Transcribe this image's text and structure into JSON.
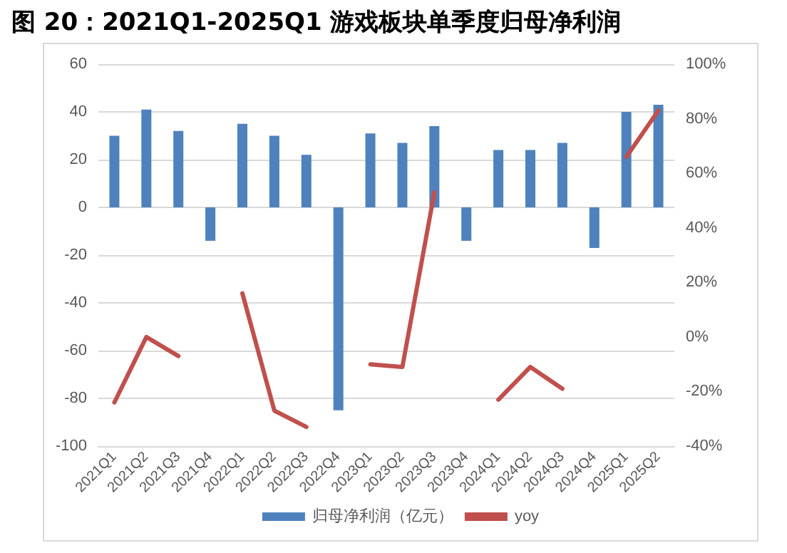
{
  "chart_data": {
    "type": "bar",
    "title": "图 20：2021Q1-2025Q1 游戏板块单季度归母净利润",
    "categories": [
      "2021Q1",
      "2021Q2",
      "2021Q3",
      "2021Q4",
      "2022Q1",
      "2022Q2",
      "2022Q3",
      "2022Q4",
      "2023Q1",
      "2023Q2",
      "2023Q3",
      "2023Q4",
      "2024Q1",
      "2024Q2",
      "2024Q3",
      "2024Q4",
      "2025Q1",
      "2025Q2"
    ],
    "series": [
      {
        "name": "归母净利润（亿元）",
        "color": "#4f81bd",
        "values": [
          30,
          41,
          32,
          -14,
          35,
          30,
          22,
          -85,
          31,
          27,
          34,
          -14,
          24,
          24,
          27,
          -17,
          40,
          43
        ]
      },
      {
        "name": "yoy",
        "type": "line",
        "axis": "y2",
        "color": "#c0504d",
        "values": [
          -24,
          0,
          -7,
          null,
          16,
          -27,
          -33,
          null,
          -10,
          -11,
          53,
          null,
          -23,
          -11,
          -19,
          null,
          66,
          83
        ]
      }
    ],
    "ylim": [
      -100,
      60
    ],
    "yticks": [
      -100,
      -80,
      -60,
      -40,
      -20,
      0,
      20,
      40,
      60
    ],
    "y2lim": [
      -40,
      100
    ],
    "y2ticks": [
      {
        "value": -40,
        "label": "-40%"
      },
      {
        "value": -20,
        "label": "-20%"
      },
      {
        "value": 0,
        "label": "0%"
      },
      {
        "value": 20,
        "label": "20%"
      },
      {
        "value": 40,
        "label": "40%"
      },
      {
        "value": 60,
        "label": "60%"
      },
      {
        "value": 80,
        "label": "80%"
      },
      {
        "value": 100,
        "label": "100%"
      }
    ],
    "grid": "y",
    "legend": "bottom",
    "marker": "none"
  }
}
